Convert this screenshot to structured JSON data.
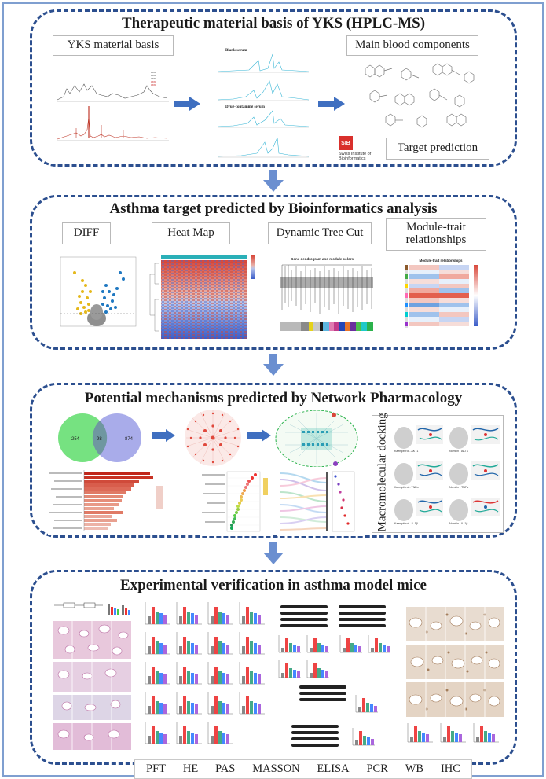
{
  "panel1": {
    "title": "Therapeutic material basis of YKS (HPLC-MS)",
    "label_material": "YKS material basis",
    "label_blood": "Main blood components",
    "label_target": "Target prediction",
    "chrom_label_blank": "Blank serum",
    "chrom_label_drug": "Drug-containing serum",
    "sib_logo": "SIB",
    "sib_text_line1": "Swiss Institute of",
    "sib_text_line2": "Bioinformatics"
  },
  "panel2": {
    "title": "Asthma target predicted by Bioinformatics analysis",
    "label_diff": "DIFF",
    "label_heatmap": "Heat Map",
    "label_tree": "Dynamic Tree Cut",
    "label_module_line1": "Module-trait",
    "label_module_line2": "relationships",
    "tree_title": "Gene dendrogram and module colors",
    "module_title": "Module-trait relationships"
  },
  "panel3": {
    "title": "Potential mechanisms predicted by Network Pharmacology",
    "venn_left": "254",
    "venn_mid": "98",
    "venn_right": "874",
    "dock_label": "Macromolecular docking",
    "dock_captions": [
      "Kaempferol - AKT1",
      "Nomilin - AKT1",
      "Kaempferol - TNFa",
      "Nomilin - TNFa",
      "Kaempferol - IL-1β",
      "Nomilin - IL-1β"
    ]
  },
  "panel4": {
    "title": "Experimental verification in asthma model mice",
    "techniques": [
      "PFT",
      "HE",
      "PAS",
      "MASSON",
      "ELISA",
      "PCR",
      "WB",
      "IHC"
    ]
  },
  "colors": {
    "border": "#2c4f8f",
    "arrow": "#3f6fc0",
    "cyan_trace": "#39b6d6",
    "venn_left": "#6fe07a",
    "venn_right": "#9a9ee6",
    "heat_red": "#d8473a",
    "heat_blue": "#3a5cc8"
  }
}
